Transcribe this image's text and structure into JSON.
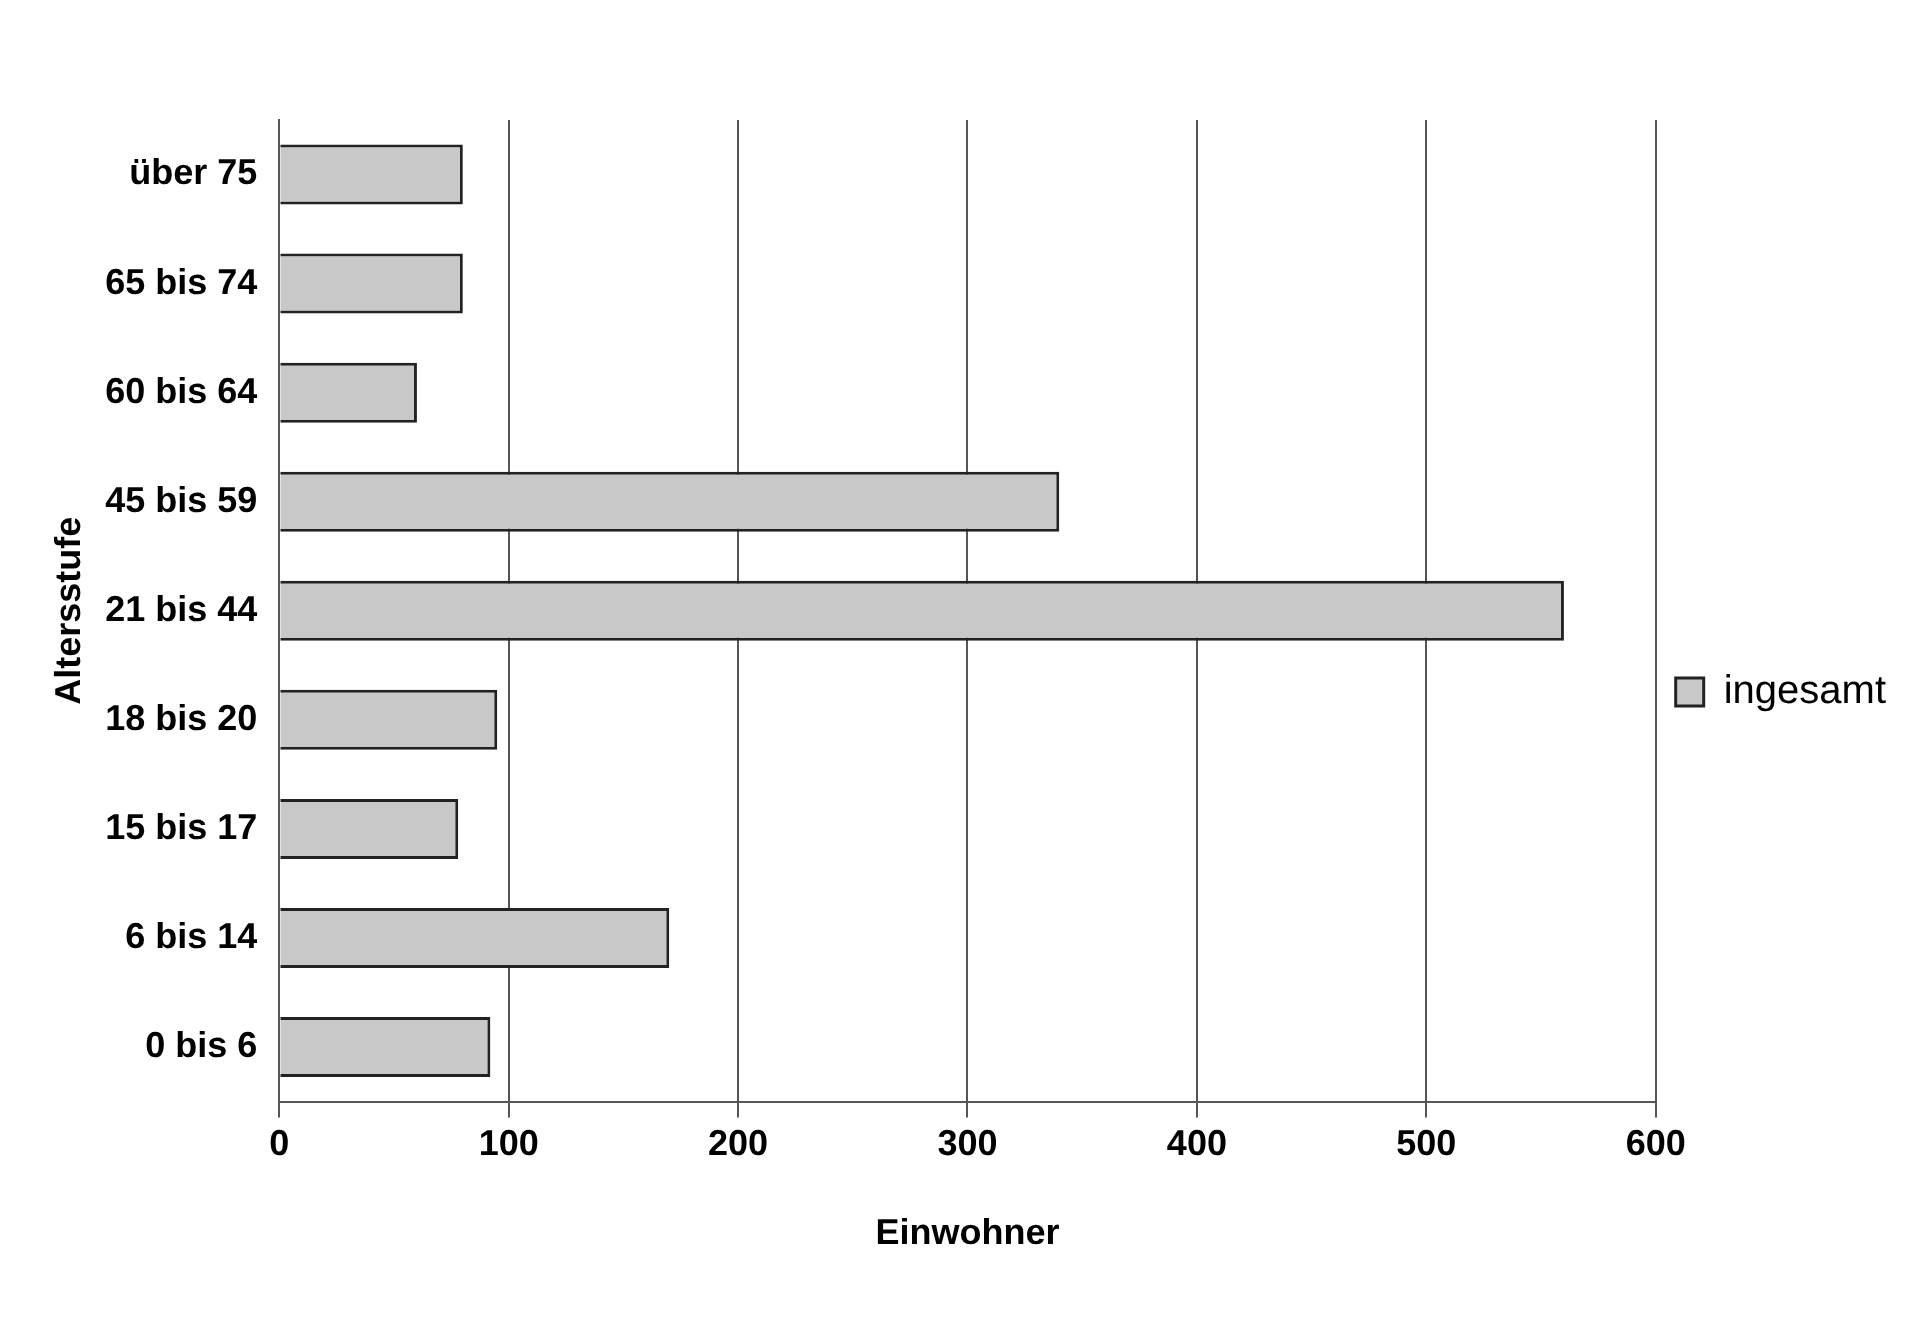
{
  "chart_data": {
    "type": "bar",
    "orientation": "horizontal",
    "xlabel": "Einwohner",
    "ylabel": "Altersstufe",
    "categories": [
      "über 75",
      "65 bis 74",
      "60 bis 64",
      "45 bis 59",
      "21 bis 44",
      "18 bis 20",
      "15 bis 17",
      "6 bis 14",
      "0 bis 6"
    ],
    "series": [
      {
        "name": "ingesamt",
        "color": "#c8c8c8",
        "values": [
          80,
          80,
          60,
          340,
          560,
          95,
          78,
          170,
          92
        ]
      }
    ],
    "xlim": [
      0,
      600
    ],
    "xticks": [
      0,
      100,
      200,
      300,
      400,
      500,
      600
    ],
    "grid": "x",
    "legend": "right"
  }
}
